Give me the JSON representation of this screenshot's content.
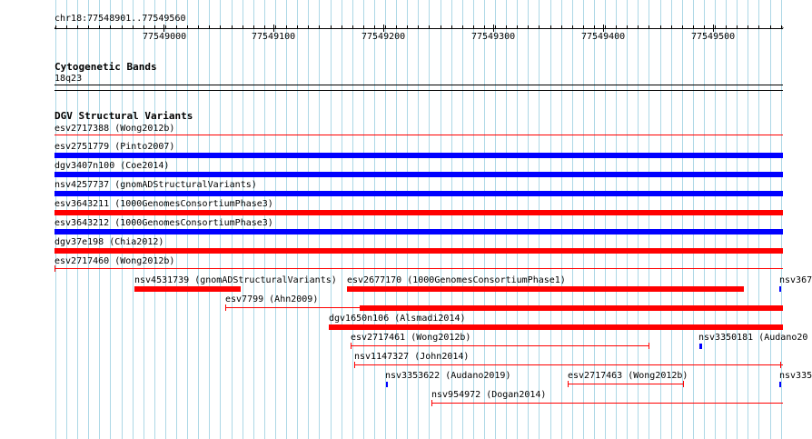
{
  "colors": {
    "grid": "#add8e6",
    "red": "#ff0000",
    "blue": "#0000ff",
    "text": "#000000"
  },
  "ruler": {
    "label": "chr18:77548901..77549560",
    "ticks": [
      "77549000",
      "77549100",
      "77549200",
      "77549300",
      "77549400",
      "77549500"
    ]
  },
  "cytoband": {
    "title": "Cytogenetic Bands",
    "band": "18q23"
  },
  "dgv": {
    "title": "DGV Structural Variants",
    "stacked": [
      {
        "label": "esv2717388 (Wong2012b)",
        "color": "red",
        "kind": "line"
      },
      {
        "label": "esv2751779 (Pinto2007)",
        "color": "blue",
        "kind": "bar"
      },
      {
        "label": "dgv3407n100 (Coe2014)",
        "color": "blue",
        "kind": "bar"
      },
      {
        "label": "nsv4257737 (gnomADStructuralVariants)",
        "color": "blue",
        "kind": "bar"
      },
      {
        "label": "esv3643211 (1000GenomesConsortiumPhase3)",
        "color": "red",
        "kind": "bar"
      },
      {
        "label": "esv3643212 (1000GenomesConsortiumPhase3)",
        "color": "blue",
        "kind": "bar"
      },
      {
        "label": "dgv37e198 (Chia2012)",
        "color": "red",
        "kind": "bar"
      },
      {
        "label": "esv2717460 (Wong2012b)",
        "color": "red",
        "kind": "line"
      }
    ],
    "packed": [
      {
        "label": "nsv4531739 (gnomADStructuralVariants)"
      },
      {
        "label": "esv2677170 (1000GenomesConsortiumPhase1)"
      },
      {
        "label": "nsv367"
      },
      {
        "label": "esv7799 (Ahn2009)"
      },
      {
        "label": "dgv1650n106 (Alsmadi2014)"
      },
      {
        "label": "esv2717461 (Wong2012b)"
      },
      {
        "label": "nsv3350181 (Audano20"
      },
      {
        "label": "nsv1147327 (John2014)"
      },
      {
        "label": "nsv3353622 (Audano2019)"
      },
      {
        "label": "esv2717463 (Wong2012b)"
      },
      {
        "label": "nsv335"
      },
      {
        "label": "nsv954972 (Dogan2014)"
      }
    ]
  }
}
